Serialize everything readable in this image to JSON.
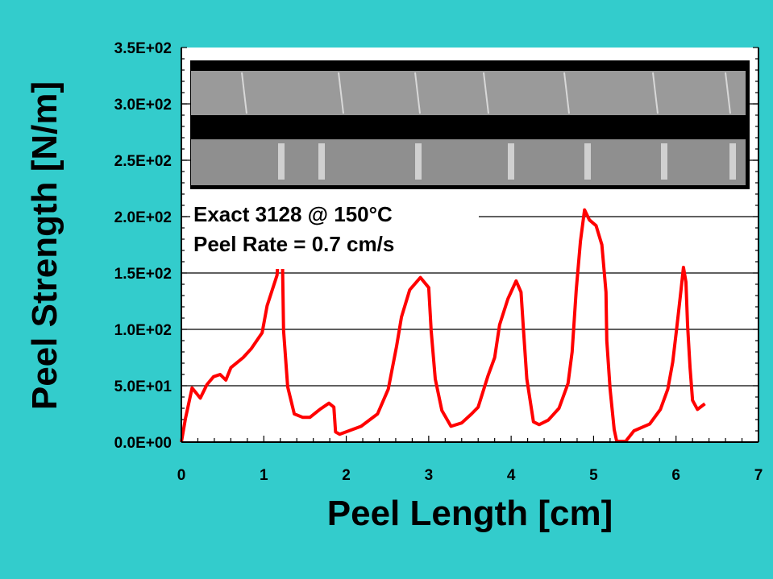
{
  "chart_data": {
    "type": "line",
    "title": "",
    "xlabel": "Peel Length [cm]",
    "ylabel": "Peel Strength [N/m]",
    "xlim": [
      0,
      7
    ],
    "ylim": [
      0,
      350
    ],
    "x_ticks": [
      "0",
      "1",
      "2",
      "3",
      "4",
      "5",
      "6",
      "7"
    ],
    "y_ticks": [
      "0.0E+00",
      "5.0E+01",
      "1.0E+02",
      "1.5E+02",
      "2.0E+02",
      "2.5E+02",
      "3.0E+02",
      "3.5E+02"
    ],
    "grid": "horizontal",
    "annotations": [
      "Exact 3128 @ 150°C",
      "Peel Rate = 0.7 cm/s"
    ],
    "inset": "photo of peeled specimen strips",
    "series": [
      {
        "name": "Peel strength",
        "color": "#FF0000",
        "x": [
          0,
          0.05,
          0.13,
          0.23,
          0.31,
          0.39,
          0.47,
          0.54,
          0.6,
          0.75,
          0.85,
          0.98,
          1.04,
          1.16,
          1.2,
          1.22,
          1.24,
          1.29,
          1.37,
          1.47,
          1.56,
          1.68,
          1.79,
          1.85,
          1.87,
          1.92,
          2.18,
          2.38,
          2.51,
          2.61,
          2.67,
          2.77,
          2.9,
          3.0,
          3.03,
          3.08,
          3.16,
          3.27,
          3.4,
          3.52,
          3.6,
          3.72,
          3.8,
          3.86,
          3.96,
          4.06,
          4.12,
          4.15,
          4.19,
          4.27,
          4.34,
          4.45,
          4.58,
          4.69,
          4.74,
          4.79,
          4.84,
          4.89,
          4.95,
          5.03,
          5.1,
          5.15,
          5.16,
          5.2,
          5.25,
          5.28,
          5.39,
          5.49,
          5.68,
          5.81,
          5.9,
          5.96,
          6.01,
          6.06,
          6.09,
          6.12,
          6.14,
          6.17,
          6.2,
          6.26,
          6.35
        ],
        "y": [
          0,
          21,
          48,
          39,
          51,
          58,
          60,
          55,
          66,
          75,
          83,
          97,
          121,
          148,
          190,
          190,
          99,
          49,
          25,
          22,
          22,
          29,
          34.5,
          31,
          9,
          7,
          14,
          25,
          47,
          85,
          111,
          135,
          146,
          137,
          99,
          56,
          28,
          14,
          17,
          25,
          31,
          59,
          75,
          104,
          127,
          143,
          133,
          99,
          56,
          18,
          15.5,
          19.5,
          30,
          52,
          80,
          135,
          178,
          206,
          197,
          192,
          175,
          133,
          90,
          47,
          11,
          0.7,
          0.7,
          10,
          16,
          29,
          47,
          71,
          102,
          135,
          155,
          142,
          104,
          66,
          37,
          29,
          34
        ]
      }
    ]
  },
  "colors": {
    "background": "#33CCCC",
    "plot": "#FFFFFF",
    "line": "#FF0000"
  }
}
